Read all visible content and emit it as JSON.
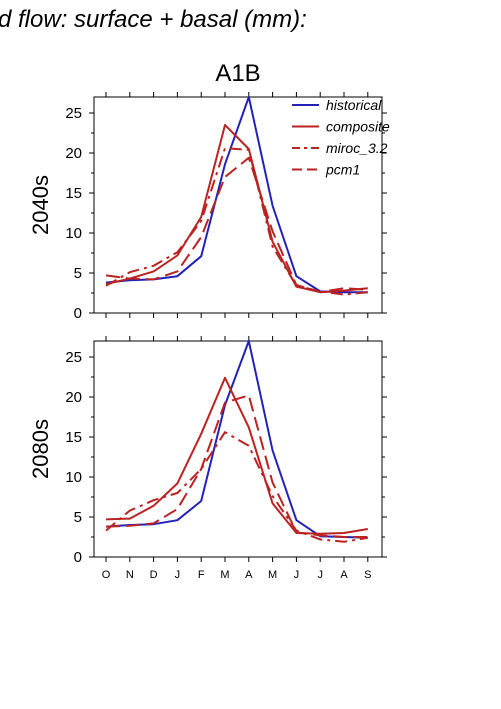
{
  "figure": {
    "title": "d flow: surface + basal (mm):",
    "scenario": "A1B"
  },
  "colors": {
    "historical": "#2222bb",
    "composite": "#bb2222",
    "miroc_3.2": "#bb2222",
    "pcm1": "#bb2222"
  },
  "chart_data": [
    {
      "type": "line",
      "panel_label": "2040s",
      "title": "A1B",
      "categories": [
        "O",
        "N",
        "D",
        "J",
        "F",
        "M",
        "A",
        "M",
        "J",
        "J",
        "A",
        "S"
      ],
      "ylim": [
        0,
        27
      ],
      "yticks": [
        0,
        5,
        10,
        15,
        20,
        25
      ],
      "legend_position": "top-right",
      "series": [
        {
          "name": "historical",
          "style": "solid",
          "color": "#2222bb",
          "values": [
            3.8,
            4.1,
            4.2,
            4.6,
            7.1,
            18.6,
            27.0,
            13.4,
            4.6,
            2.7,
            2.6,
            2.6
          ]
        },
        {
          "name": "composite",
          "style": "solid",
          "color": "#bb2222",
          "values": [
            3.6,
            4.3,
            5.2,
            7.2,
            12.0,
            23.5,
            20.5,
            8.9,
            3.3,
            2.6,
            2.8,
            3.1
          ]
        },
        {
          "name": "miroc_3.2",
          "style": "dashdot",
          "color": "#bb2222",
          "values": [
            3.4,
            5.1,
            5.9,
            7.6,
            11.5,
            20.6,
            20.4,
            8.3,
            3.4,
            2.7,
            2.3,
            2.6
          ]
        },
        {
          "name": "pcm1",
          "style": "dashed",
          "color": "#bb2222",
          "values": [
            4.7,
            4.3,
            4.2,
            5.2,
            9.5,
            17.0,
            19.4,
            10.2,
            3.5,
            2.6,
            3.1,
            2.9
          ]
        }
      ]
    },
    {
      "type": "line",
      "panel_label": "2080s",
      "title": "",
      "categories": [
        "O",
        "N",
        "D",
        "J",
        "F",
        "M",
        "A",
        "M",
        "J",
        "J",
        "A",
        "S"
      ],
      "ylim": [
        0,
        27
      ],
      "yticks": [
        0,
        5,
        10,
        15,
        20,
        25
      ],
      "series": [
        {
          "name": "historical",
          "style": "solid",
          "color": "#2222bb",
          "values": [
            3.8,
            4.0,
            4.1,
            4.6,
            7.0,
            19.0,
            27.0,
            13.3,
            4.6,
            2.6,
            2.5,
            2.4
          ]
        },
        {
          "name": "composite",
          "style": "solid",
          "color": "#bb2222",
          "values": [
            4.7,
            4.8,
            6.4,
            9.2,
            15.4,
            22.4,
            16.2,
            6.7,
            3.0,
            2.9,
            3.0,
            3.5
          ]
        },
        {
          "name": "miroc_3.2",
          "style": "dashdot",
          "color": "#bb2222",
          "values": [
            3.3,
            5.8,
            7.1,
            8.0,
            11.0,
            15.6,
            13.9,
            7.6,
            3.3,
            2.2,
            1.9,
            2.4
          ]
        },
        {
          "name": "pcm1",
          "style": "dashed",
          "color": "#bb2222",
          "values": [
            3.8,
            3.9,
            4.2,
            6.0,
            11.0,
            19.3,
            20.2,
            9.3,
            3.1,
            2.7,
            2.5,
            2.5
          ]
        }
      ]
    }
  ]
}
